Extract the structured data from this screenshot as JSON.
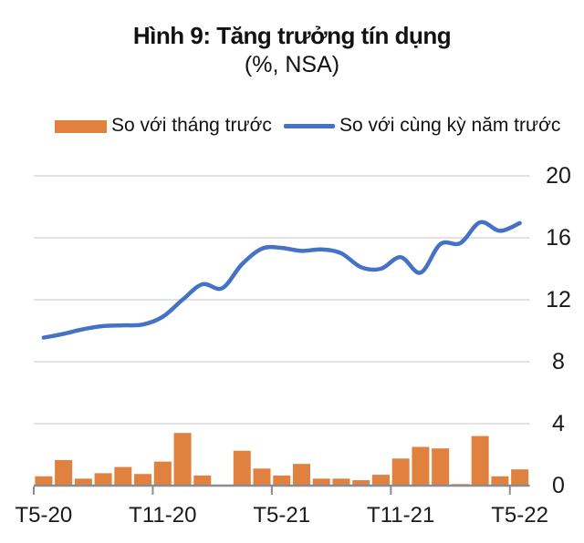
{
  "page": {
    "title": "Hình 9: Tăng trưởng tín dụng",
    "subtitle": "(%, NSA)"
  },
  "colors": {
    "bar": "#E08140",
    "line": "#4472C4",
    "gridline": "#D9D9D9",
    "axis": "#8C8C8C",
    "text": "#1A1A1A"
  },
  "chart_data": {
    "type": "combo",
    "title": "Hình 9: Tăng trưởng tín dụng",
    "subtitle": "(%, NSA)",
    "grid": true,
    "legend_position": "top",
    "y_axis_side": "right",
    "ylim": [
      0,
      20
    ],
    "y_ticks": [
      0,
      4,
      8,
      12,
      16,
      20
    ],
    "categories": [
      "T5-20",
      "T6-20",
      "T7-20",
      "T8-20",
      "T9-20",
      "T10-20",
      "T11-20",
      "T12-20",
      "T1-21",
      "T2-21",
      "T3-21",
      "T4-21",
      "T5-21",
      "T6-21",
      "T7-21",
      "T8-21",
      "T9-21",
      "T10-21",
      "T11-21",
      "T12-21",
      "T1-22",
      "T2-22",
      "T3-22",
      "T4-22",
      "T5-22"
    ],
    "x_tick_labels": [
      {
        "index": 0,
        "label": "T5-20"
      },
      {
        "index": 6,
        "label": "T11-20"
      },
      {
        "index": 12,
        "label": "T5-21"
      },
      {
        "index": 18,
        "label": "T11-21"
      },
      {
        "index": 24,
        "label": "T5-22"
      }
    ],
    "series": [
      {
        "name": "So với tháng trước",
        "type": "bar",
        "color": "#E08140",
        "values": [
          0.6,
          1.65,
          0.45,
          0.8,
          1.2,
          0.75,
          1.55,
          3.4,
          0.65,
          0.0,
          2.25,
          1.1,
          0.65,
          1.4,
          0.45,
          0.45,
          0.35,
          0.7,
          1.75,
          2.5,
          2.4,
          0.1,
          3.2,
          0.6,
          1.05
        ]
      },
      {
        "name": "So với cùng kỳ năm trước",
        "type": "line",
        "color": "#4472C4",
        "values": [
          9.55,
          9.8,
          10.1,
          10.3,
          10.35,
          10.4,
          10.9,
          12.0,
          13.0,
          12.75,
          14.3,
          15.3,
          15.35,
          15.15,
          15.25,
          15.0,
          14.1,
          14.0,
          14.75,
          13.75,
          15.6,
          15.65,
          17.0,
          16.45,
          16.95
        ]
      }
    ]
  }
}
